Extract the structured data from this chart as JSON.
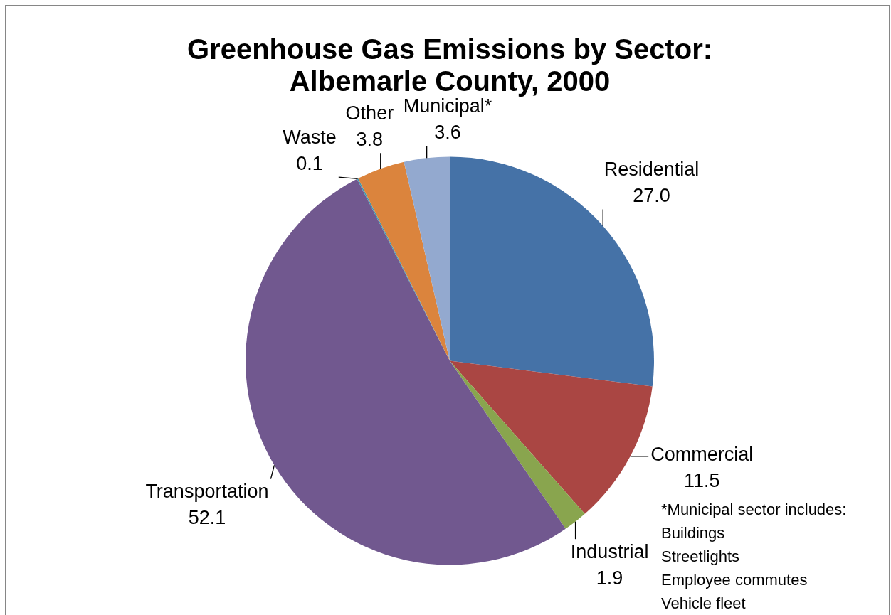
{
  "chart_data": {
    "type": "pie",
    "title": "Greenhouse Gas Emissions by Sector: Albemarle County, 2000",
    "categories": [
      "Residential",
      "Commercial",
      "Industrial",
      "Transportation",
      "Waste",
      "Other",
      "Municipal*"
    ],
    "values": [
      27.0,
      11.5,
      1.9,
      52.1,
      0.1,
      3.8,
      3.6
    ],
    "value_labels": [
      "27.0",
      "11.5",
      "1.9",
      "52.1",
      "0.1",
      "3.8",
      "3.6"
    ],
    "colors": [
      "#4572a7",
      "#aa4643",
      "#89a54e",
      "#71588f",
      "#4198af",
      "#db843d",
      "#93a9cf"
    ],
    "annotations": [
      "*Municipal sector includes:",
      "Buildings",
      "Streetlights",
      "Employee commutes",
      "Vehicle fleet"
    ]
  }
}
